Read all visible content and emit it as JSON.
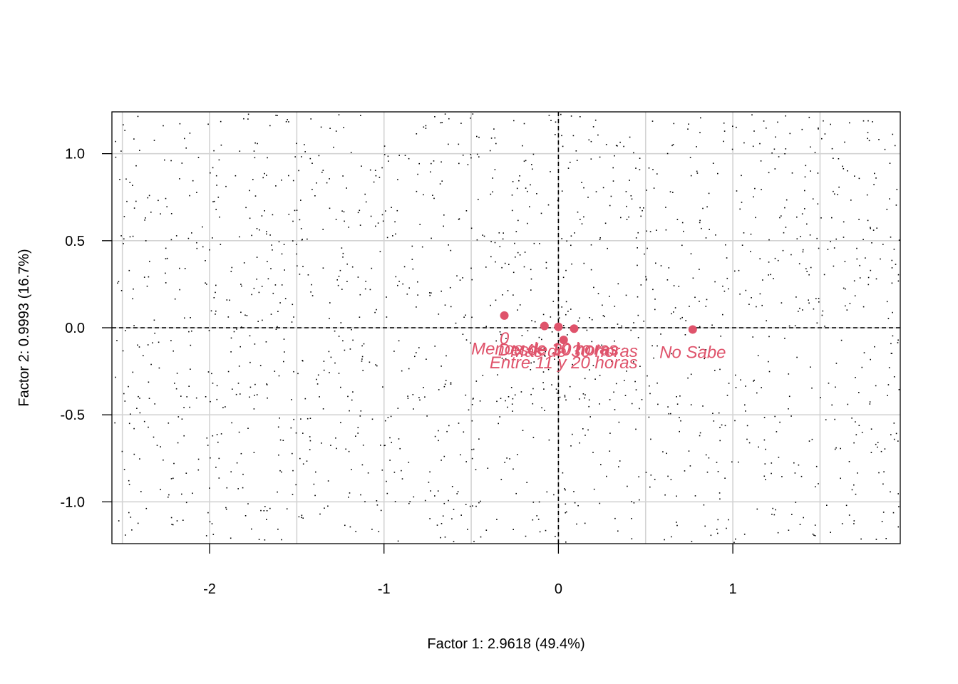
{
  "chart_data": {
    "type": "scatter",
    "title": "",
    "xlabel": "Factor 1: 2.9618 (49.4%)",
    "ylabel": "Factor 2: 0.9993 (16.7%)",
    "xlim": [
      -2.56,
      1.96
    ],
    "ylim": [
      -1.24,
      1.24
    ],
    "x_ticks": [
      -2,
      -1,
      0,
      1
    ],
    "x_tick_labels": [
      "-2",
      "-1",
      "0",
      "1"
    ],
    "y_ticks": [
      -1.0,
      -0.5,
      0.0,
      0.5,
      1.0
    ],
    "y_tick_labels": [
      "-1.0",
      "-0.5",
      "0.0",
      "0.5",
      "1.0"
    ],
    "grid": true,
    "grid_step_x": 0.5,
    "grid_step_y": 0.5,
    "reference_lines": {
      "x": 0,
      "y": 0,
      "style": "dashed"
    },
    "background_points": {
      "count": 1600,
      "color": "#000000"
    },
    "category_color": "#DF536B",
    "categories": [
      {
        "label": "0",
        "x": -0.31,
        "y": 0.07
      },
      {
        "label": "Menos de 10 horas",
        "x": -0.08,
        "y": 0.01
      },
      {
        "label": "Desde 30 horas",
        "x": 0.0,
        "y": 0.005
      },
      {
        "label": "Más de 30 horas",
        "x": 0.09,
        "y": -0.005
      },
      {
        "label": "Entre 11 y 20 horas",
        "x": 0.03,
        "y": -0.07
      },
      {
        "label": "No Sabe",
        "x": 0.77,
        "y": -0.01
      }
    ]
  }
}
